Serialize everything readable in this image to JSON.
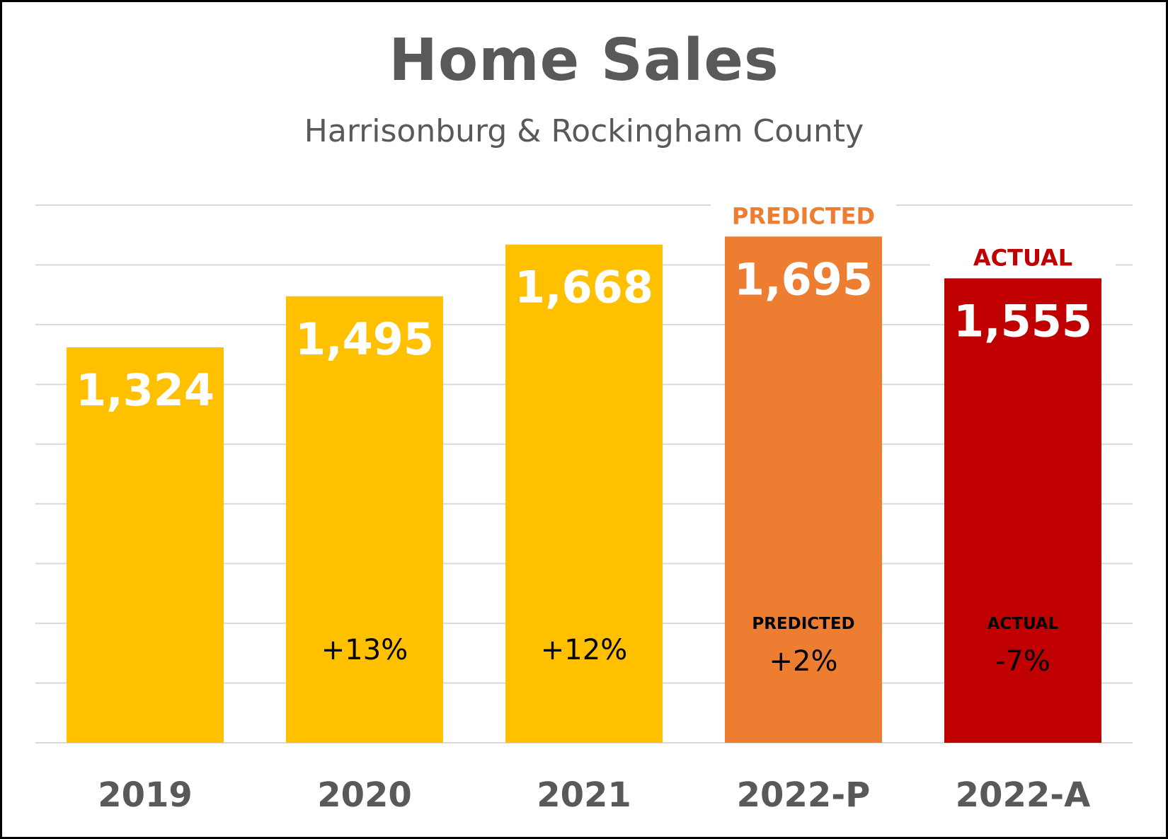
{
  "chart_data": {
    "type": "bar",
    "title": "Home Sales",
    "subtitle": "Harrisonburg & Rockingham County",
    "categories": [
      "2019",
      "2020",
      "2021",
      "2022-P",
      "2022-A"
    ],
    "values": [
      1324,
      1495,
      1668,
      1695,
      1555
    ],
    "value_labels": [
      "1,324",
      "1,495",
      "1,668",
      "1,695",
      "1,555"
    ],
    "change_labels": [
      "",
      "+13%",
      "+12%",
      "+2%",
      "-7%"
    ],
    "change_sublabels": [
      "",
      "",
      "",
      "PREDICTED",
      "ACTUAL"
    ],
    "bar_top_labels": [
      "",
      "",
      "",
      "PREDICTED",
      "ACTUAL"
    ],
    "colors": [
      "#FFC000",
      "#FFC000",
      "#FFC000",
      "#ED7D31",
      "#C00000"
    ],
    "label_colors": [
      "",
      "",
      "",
      "#ED7D31",
      "#C00000"
    ],
    "ylim": [
      0,
      1800
    ],
    "grid": true,
    "xlabel": "",
    "ylabel": ""
  }
}
